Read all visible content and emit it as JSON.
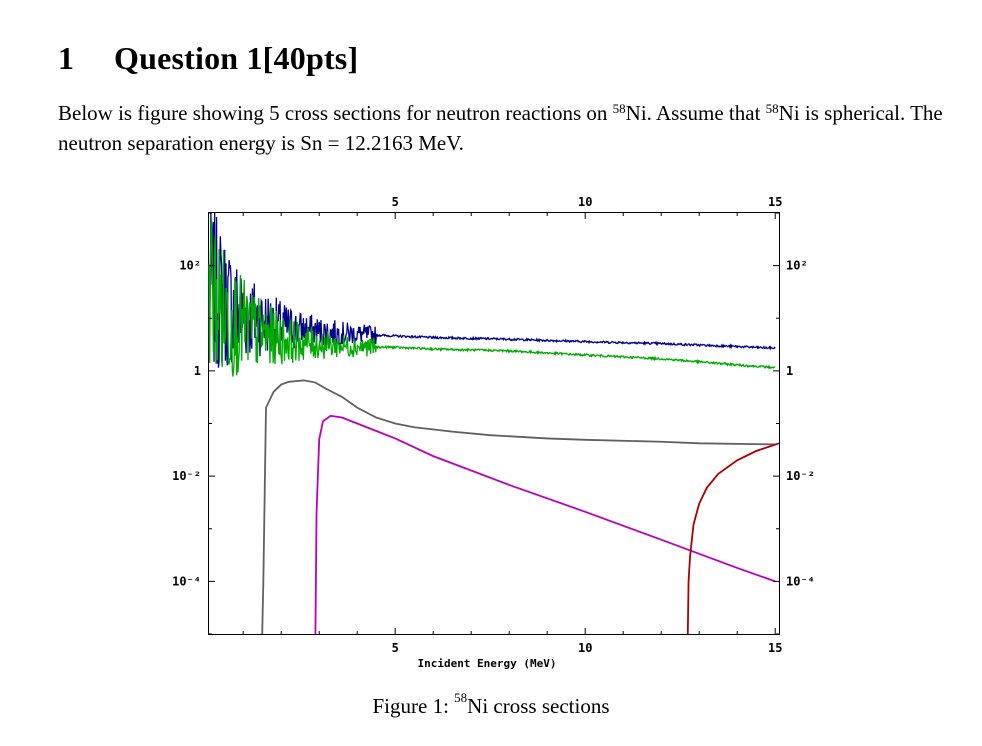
{
  "section": {
    "number": "1",
    "title": "Question 1[40pts]"
  },
  "paragraph": {
    "p1": "Below is figure showing 5 cross sections for neutron reactions on ",
    "iso1_mass": "58",
    "p2": "Ni. Assume that ",
    "iso2_mass": "58",
    "p3": "Ni is spherical. The neutron separation energy is Sn = 12.2163 MeV."
  },
  "caption": {
    "prefix": "Figure 1: ",
    "mass": "58",
    "suffix": "Ni cross sections"
  },
  "chart_data": {
    "type": "line",
    "title": "",
    "xlabel": "Incident Energy (MeV)",
    "ylabel": "",
    "xlim": [
      0.1,
      15.1
    ],
    "ylim": [
      1e-05,
      1000
    ],
    "y_scale": "log",
    "grid": false,
    "legend": "none",
    "x_ticks": [
      5,
      10,
      15
    ],
    "x_tick_labels": [
      "5",
      "10",
      "15"
    ],
    "y_ticks": [
      100,
      1,
      0.01,
      0.0001
    ],
    "y_tick_labels": [
      "10²",
      "1",
      "10⁻²",
      "10⁻⁴"
    ],
    "series": [
      {
        "color": "#00008b",
        "noisy": true,
        "x": [
          0.1,
          0.5,
          1,
          1.5,
          2,
          2.5,
          3,
          3.5,
          4,
          5,
          6,
          8,
          10,
          12,
          14,
          15
        ],
        "y": [
          40,
          20,
          12,
          9,
          7,
          6,
          5.5,
          5.2,
          5,
          4.6,
          4.3,
          4.0,
          3.6,
          3.3,
          2.9,
          2.7
        ]
      },
      {
        "color": "#00aa00",
        "noisy": true,
        "x": [
          0.1,
          0.3,
          0.5,
          1,
          1.5,
          2,
          2.5,
          3,
          3.5,
          4,
          5,
          6,
          8,
          10,
          12,
          14,
          15
        ],
        "y": [
          60,
          20,
          12,
          7,
          5,
          4,
          3.5,
          3.2,
          3.0,
          2.9,
          2.8,
          2.6,
          2.4,
          2.0,
          1.7,
          1.3,
          1.15
        ]
      },
      {
        "color": "#606060",
        "x": [
          1.5,
          1.53,
          1.6,
          1.8,
          2.0,
          2.2,
          2.6,
          2.9,
          3.2,
          3.6,
          4.0,
          4.5,
          5.0,
          5.5,
          6.5,
          7.5,
          9,
          10,
          12,
          13,
          15
        ],
        "y": [
          1e-05,
          0.0001,
          0.2,
          0.4,
          0.55,
          0.62,
          0.66,
          0.6,
          0.45,
          0.32,
          0.2,
          0.13,
          0.1,
          0.085,
          0.07,
          0.06,
          0.052,
          0.049,
          0.045,
          0.042,
          0.04
        ]
      },
      {
        "color": "#bb00bb",
        "x": [
          2.9,
          2.93,
          3.0,
          3.1,
          3.3,
          3.6,
          4.0,
          5,
          6,
          8,
          10,
          12,
          14,
          15
        ],
        "y": [
          1e-05,
          0.002,
          0.05,
          0.11,
          0.14,
          0.13,
          0.1,
          0.052,
          0.024,
          0.0068,
          0.0021,
          0.00062,
          0.00018,
          0.0001
        ]
      },
      {
        "color": "#aa0000",
        "x": [
          12.7,
          12.72,
          12.76,
          12.85,
          13.0,
          13.2,
          13.5,
          14.0,
          14.5,
          15.1
        ],
        "y": [
          1e-05,
          0.0001,
          0.0003,
          0.0012,
          0.003,
          0.006,
          0.011,
          0.02,
          0.03,
          0.042
        ]
      }
    ]
  }
}
